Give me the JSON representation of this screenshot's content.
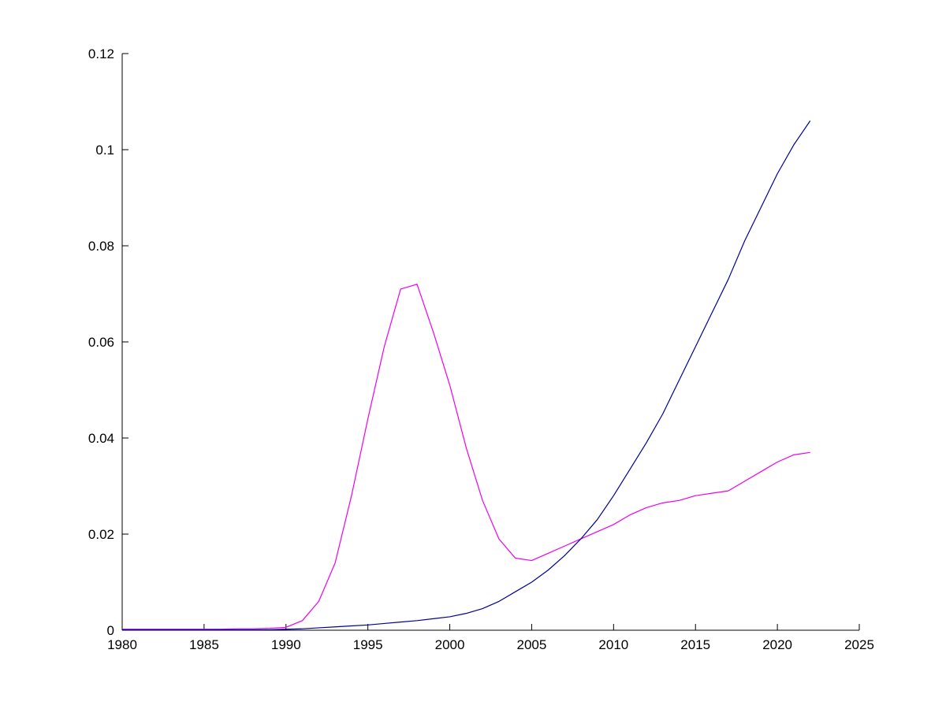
{
  "figure": {
    "background": "#ffffff",
    "axis_color": "#000000"
  },
  "chart_data": {
    "type": "line",
    "title": "",
    "xlabel": "",
    "ylabel": "",
    "grid": false,
    "legend": null,
    "xlim": [
      1980,
      2025
    ],
    "ylim": [
      0,
      0.12
    ],
    "xticks": [
      1980,
      1985,
      1990,
      1995,
      2000,
      2005,
      2010,
      2015,
      2020,
      2025
    ],
    "xtick_labels": [
      "1980",
      "1985",
      "1990",
      "1995",
      "2000",
      "2005",
      "2010",
      "2015",
      "2020",
      "2025"
    ],
    "yticks": [
      0,
      0.02,
      0.04,
      0.06,
      0.08,
      0.1,
      0.12
    ],
    "ytick_labels": [
      "0",
      "0.02",
      "0.04",
      "0.06",
      "0.08",
      "0.1",
      "0.12"
    ],
    "x": [
      1980,
      1981,
      1982,
      1983,
      1984,
      1985,
      1986,
      1987,
      1988,
      1989,
      1990,
      1991,
      1992,
      1993,
      1994,
      1995,
      1996,
      1997,
      1998,
      1999,
      2000,
      2001,
      2002,
      2003,
      2004,
      2005,
      2006,
      2007,
      2008,
      2009,
      2010,
      2011,
      2012,
      2013,
      2014,
      2015,
      2016,
      2017,
      2018,
      2019,
      2020,
      2021,
      2022
    ],
    "series": [
      {
        "name": "magenta-series",
        "color": "#ee00ee",
        "values": [
          0.0002,
          0.0002,
          0.0002,
          0.0002,
          0.0002,
          0.0002,
          0.0002,
          0.0003,
          0.0003,
          0.0004,
          0.0006,
          0.002,
          0.006,
          0.014,
          0.028,
          0.044,
          0.059,
          0.071,
          0.072,
          0.062,
          0.051,
          0.038,
          0.027,
          0.019,
          0.015,
          0.0145,
          0.016,
          0.0175,
          0.019,
          0.0205,
          0.022,
          0.024,
          0.0255,
          0.0265,
          0.027,
          0.028,
          0.0285,
          0.029,
          0.031,
          0.033,
          0.035,
          0.0365,
          0.037
        ]
      },
      {
        "name": "blue-series",
        "color": "#000099",
        "values": [
          0.0001,
          0.0001,
          0.0001,
          0.0001,
          0.0001,
          0.0001,
          0.0001,
          0.0001,
          0.0001,
          0.0001,
          0.0002,
          0.0003,
          0.0005,
          0.0007,
          0.0009,
          0.0011,
          0.0014,
          0.0017,
          0.002,
          0.0024,
          0.0028,
          0.0035,
          0.0045,
          0.006,
          0.008,
          0.01,
          0.0125,
          0.0155,
          0.019,
          0.023,
          0.028,
          0.0335,
          0.039,
          0.045,
          0.052,
          0.059,
          0.066,
          0.073,
          0.081,
          0.088,
          0.095,
          0.101,
          0.106
        ]
      }
    ]
  }
}
